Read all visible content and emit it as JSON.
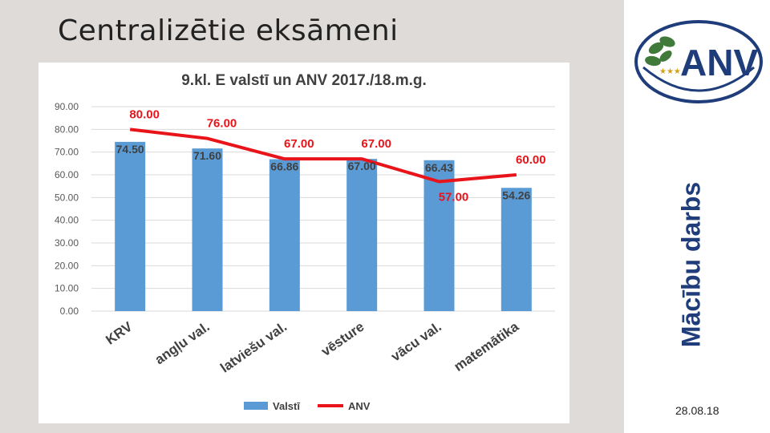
{
  "slide": {
    "title": "Centralizētie eksāmeni",
    "side_label": "Mācību darbs",
    "date": "28.08.18",
    "logo_text": "ANV"
  },
  "chart_data": {
    "type": "bar",
    "title": "9.kl. E valstī un ANV 2017./18.m.g.",
    "categories": [
      "KRV",
      "angļu val.",
      "latviešu val.",
      "vēsture",
      "vācu val.",
      "matemātika"
    ],
    "series": [
      {
        "name": "Valstī",
        "type": "bar",
        "color": "#5b9bd5",
        "values": [
          74.5,
          71.6,
          66.86,
          67.0,
          66.43,
          54.26
        ],
        "labels": [
          "74.50",
          "71.60",
          "66.86",
          "67.00",
          "66.43",
          "54.26"
        ]
      },
      {
        "name": "ANV",
        "type": "line",
        "color": "#e8141a",
        "values": [
          80.0,
          76.0,
          67.0,
          67.0,
          57.0,
          60.0
        ],
        "labels": [
          "80.00",
          "76.00",
          "67.00",
          "67.00",
          "57.00",
          "60.00"
        ]
      }
    ],
    "ylim": [
      0,
      90
    ],
    "yticks": [
      "0.00",
      "10.00",
      "20.00",
      "30.00",
      "40.00",
      "50.00",
      "60.00",
      "70.00",
      "80.00",
      "90.00"
    ],
    "grid": true,
    "legend": "bottom"
  }
}
